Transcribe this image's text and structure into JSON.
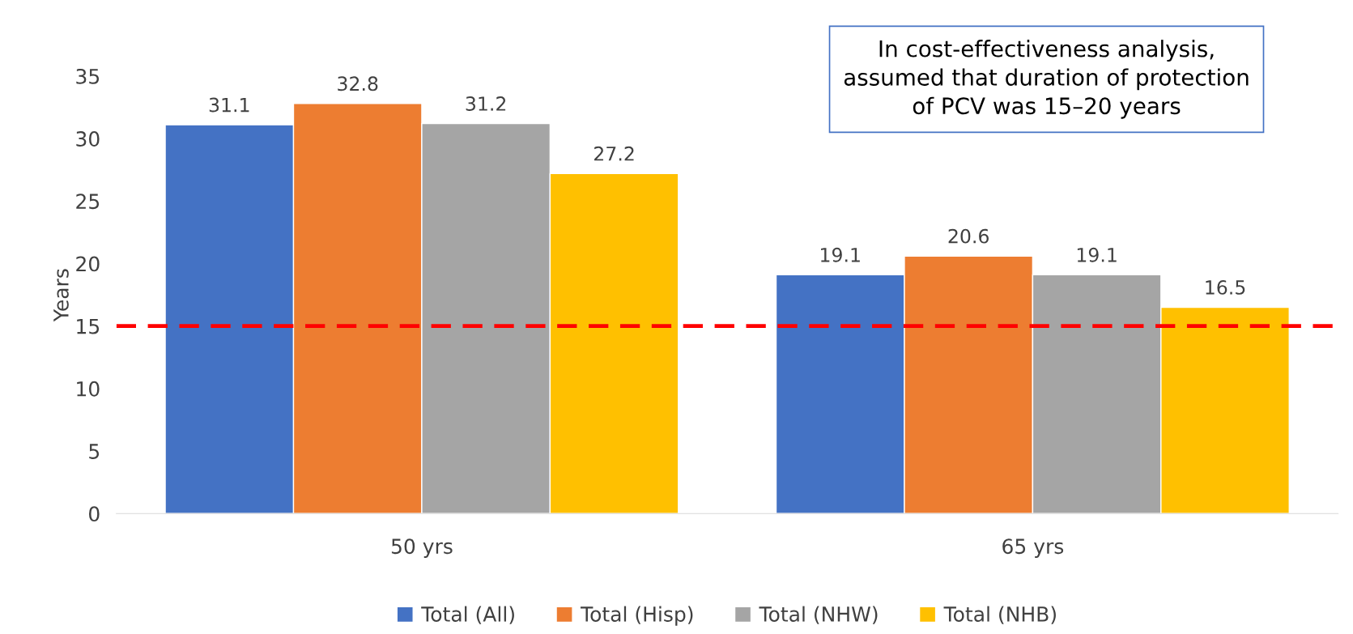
{
  "chart_data": {
    "type": "bar",
    "ylabel": "Years",
    "categories": [
      "50 yrs",
      "65 yrs"
    ],
    "series": [
      {
        "name": "Total (All)",
        "color": "#4472c4",
        "values": [
          31.1,
          19.1
        ]
      },
      {
        "name": "Total (Hisp)",
        "color": "#ed7d31",
        "values": [
          32.8,
          20.6
        ]
      },
      {
        "name": "Total (NHW)",
        "color": "#a5a5a5",
        "values": [
          31.2,
          19.1
        ]
      },
      {
        "name": "Total (NHB)",
        "color": "#ffc000",
        "values": [
          27.2,
          16.5
        ]
      }
    ],
    "ylim": [
      0,
      35
    ],
    "yticks": [
      0,
      5,
      10,
      15,
      20,
      25,
      30,
      35
    ],
    "ref_lines": [
      {
        "axis": "y",
        "value": 15,
        "color": "#ff0000",
        "line_style": "dashed"
      }
    ],
    "annotations": [
      "In cost-effectiveness analysis,\nassumed that duration of protection\nof PCV was 15–20 years"
    ],
    "data_labels": true,
    "legend": "bottom",
    "grid": false
  }
}
